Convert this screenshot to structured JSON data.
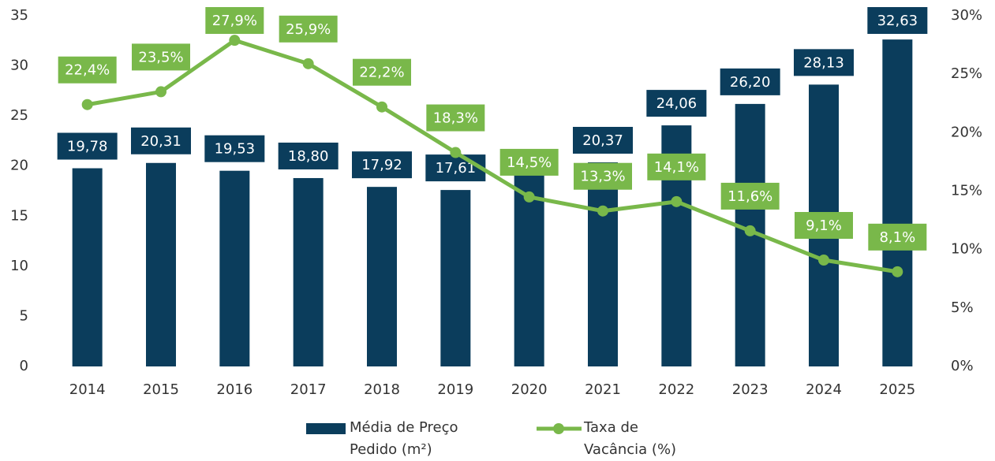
{
  "chart_data": {
    "type": "bar_line",
    "categories": [
      "2014",
      "2015",
      "2016",
      "2017",
      "2018",
      "2019",
      "2020",
      "2021",
      "2022",
      "2023",
      "2024",
      "2025"
    ],
    "series": [
      {
        "name": "Média de Preço Pedido (m²)",
        "type": "bar",
        "color": "#0b3d5c",
        "values": [
          19.78,
          20.31,
          19.53,
          18.8,
          17.92,
          17.61,
          21.2,
          20.37,
          24.06,
          26.2,
          28.13,
          32.63
        ],
        "value_labels": [
          "19,78",
          "20,31",
          "19,53",
          "18,80",
          "17,92",
          "17,61",
          null,
          "20,37",
          "24,06",
          "26,20",
          "28,13",
          "32,63"
        ]
      },
      {
        "name": "Taxa de Vacância (%)",
        "type": "line",
        "axis": "y2",
        "color": "#79b84a",
        "values": [
          22.4,
          23.5,
          27.9,
          25.9,
          22.2,
          18.3,
          14.5,
          13.3,
          14.1,
          11.6,
          9.1,
          8.1
        ],
        "value_labels": [
          "22,4%",
          "23,5%",
          "27,9%",
          "25,9%",
          "22,2%",
          "18,3%",
          "14,5%",
          "13,3%",
          "14,1%",
          "11,6%",
          "9,1%",
          "8,1%"
        ]
      }
    ],
    "ylim": [
      0,
      35
    ],
    "yticks": [
      0,
      5,
      10,
      15,
      20,
      25,
      30,
      35
    ],
    "y2lim": [
      0,
      30
    ],
    "y2ticks": [
      {
        "value": 0,
        "label": "0%"
      },
      {
        "value": 5,
        "label": "5%"
      },
      {
        "value": 10,
        "label": "10%"
      },
      {
        "value": 15,
        "label": "15%"
      },
      {
        "value": 20,
        "label": "20%"
      },
      {
        "value": 25,
        "label": "25%"
      },
      {
        "value": 30,
        "label": "30%"
      }
    ],
    "legend": "bottom"
  }
}
